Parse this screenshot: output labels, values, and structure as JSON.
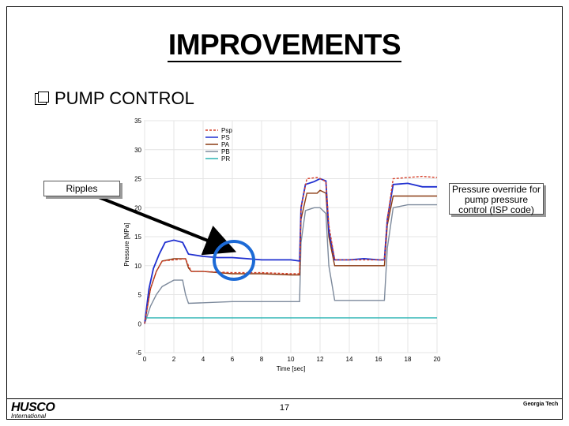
{
  "slide": {
    "title": "IMPROVEMENTS",
    "bullet": "PUMP CONTROL",
    "page_number": "17"
  },
  "callouts": {
    "ripples": "Ripples",
    "override": "Pressure override for pump pressure control (ISP code)"
  },
  "logos": {
    "left_brand": "HUSCO",
    "left_sub": "International",
    "right_text": "Georgia Tech"
  },
  "colors": {
    "Psp": "#d6402a",
    "PS": "#1f2fd0",
    "PA": "#8a3a12",
    "PB": "#7d8a9c",
    "PR": "#2ab3b3",
    "arrow": "#000000",
    "highlight": "#1c6ad6"
  },
  "chart_data": {
    "type": "line",
    "xlabel": "Time [sec]",
    "ylabel": "Pressure [MPa]",
    "xlim": [
      0,
      20
    ],
    "ylim": [
      -5,
      35
    ],
    "xticks": [
      0,
      2,
      4,
      6,
      8,
      10,
      12,
      14,
      16,
      18,
      20
    ],
    "yticks": [
      -5,
      0,
      5,
      10,
      15,
      20,
      25,
      30,
      35
    ],
    "grid": true,
    "legend_position": "top-center",
    "series": [
      {
        "name": "Psp",
        "style": "dashed",
        "points": [
          [
            0,
            0
          ],
          [
            0.4,
            6
          ],
          [
            0.8,
            9
          ],
          [
            1.2,
            10.8
          ],
          [
            2,
            11
          ],
          [
            2.8,
            11.2
          ],
          [
            3,
            10
          ],
          [
            3.2,
            9
          ],
          [
            4,
            9
          ],
          [
            6,
            8.8
          ],
          [
            8,
            8.8
          ],
          [
            10,
            8.6
          ],
          [
            10.6,
            8.6
          ],
          [
            10.7,
            20
          ],
          [
            11.1,
            25
          ],
          [
            11.8,
            25.2
          ],
          [
            12,
            25
          ],
          [
            12.4,
            24.5
          ],
          [
            12.6,
            17
          ],
          [
            13,
            11
          ],
          [
            14,
            11
          ],
          [
            16,
            11
          ],
          [
            16.4,
            11
          ],
          [
            16.6,
            18
          ],
          [
            17,
            25
          ],
          [
            18,
            25.2
          ],
          [
            19,
            25.4
          ],
          [
            20,
            25.2
          ]
        ]
      },
      {
        "name": "PS",
        "style": "solid",
        "points": [
          [
            0,
            0
          ],
          [
            0.3,
            6
          ],
          [
            0.6,
            9.5
          ],
          [
            1,
            12
          ],
          [
            1.4,
            14
          ],
          [
            2,
            14.4
          ],
          [
            2.6,
            14
          ],
          [
            2.8,
            13
          ],
          [
            3,
            12
          ],
          [
            4,
            11.6
          ],
          [
            5,
            11.4
          ],
          [
            6,
            11.4
          ],
          [
            7,
            11.2
          ],
          [
            8,
            11
          ],
          [
            9,
            11
          ],
          [
            10,
            11
          ],
          [
            10.6,
            10.8
          ],
          [
            10.7,
            20
          ],
          [
            11,
            24
          ],
          [
            11.6,
            24.5
          ],
          [
            12,
            25
          ],
          [
            12.4,
            24.6
          ],
          [
            12.6,
            16
          ],
          [
            13,
            11
          ],
          [
            14,
            11
          ],
          [
            15,
            11.2
          ],
          [
            16,
            11
          ],
          [
            16.4,
            11
          ],
          [
            16.6,
            18
          ],
          [
            17,
            24
          ],
          [
            18,
            24.2
          ],
          [
            19,
            23.6
          ],
          [
            20,
            23.6
          ]
        ]
      },
      {
        "name": "PA",
        "style": "solid",
        "points": [
          [
            0,
            0
          ],
          [
            0.4,
            6
          ],
          [
            0.8,
            9
          ],
          [
            1.2,
            10.8
          ],
          [
            2,
            11.2
          ],
          [
            2.8,
            11.2
          ],
          [
            3,
            9.6
          ],
          [
            3.2,
            9
          ],
          [
            4,
            9
          ],
          [
            6,
            8.6
          ],
          [
            8,
            8.6
          ],
          [
            10,
            8.4
          ],
          [
            10.6,
            8.4
          ],
          [
            10.7,
            18
          ],
          [
            11.1,
            22.5
          ],
          [
            11.8,
            22.5
          ],
          [
            12,
            23
          ],
          [
            12.4,
            22.5
          ],
          [
            12.6,
            15
          ],
          [
            13,
            10
          ],
          [
            14,
            10
          ],
          [
            16,
            10
          ],
          [
            16.4,
            10
          ],
          [
            16.6,
            17
          ],
          [
            17,
            22
          ],
          [
            18,
            22
          ],
          [
            19,
            22
          ],
          [
            20,
            22
          ]
        ]
      },
      {
        "name": "PB",
        "style": "solid",
        "points": [
          [
            0,
            0
          ],
          [
            0.4,
            3
          ],
          [
            0.8,
            5
          ],
          [
            1.2,
            6.4
          ],
          [
            2,
            7.5
          ],
          [
            2.6,
            7.5
          ],
          [
            2.8,
            5
          ],
          [
            3,
            3.5
          ],
          [
            4,
            3.6
          ],
          [
            6,
            3.8
          ],
          [
            8,
            3.8
          ],
          [
            10,
            3.8
          ],
          [
            10.6,
            3.8
          ],
          [
            10.7,
            14
          ],
          [
            11,
            19.5
          ],
          [
            11.6,
            20
          ],
          [
            12,
            20
          ],
          [
            12.4,
            19
          ],
          [
            12.6,
            10
          ],
          [
            13,
            4
          ],
          [
            14,
            4
          ],
          [
            16,
            4
          ],
          [
            16.4,
            4
          ],
          [
            16.6,
            13
          ],
          [
            17,
            20
          ],
          [
            18,
            20.5
          ],
          [
            19,
            20.5
          ],
          [
            20,
            20.5
          ]
        ]
      },
      {
        "name": "PR",
        "style": "solid",
        "points": [
          [
            0,
            1
          ],
          [
            2,
            1
          ],
          [
            4,
            1
          ],
          [
            6,
            1
          ],
          [
            8,
            1
          ],
          [
            10,
            1
          ],
          [
            12,
            1
          ],
          [
            14,
            1
          ],
          [
            16,
            1
          ],
          [
            18,
            1
          ],
          [
            20,
            1
          ]
        ]
      }
    ]
  }
}
